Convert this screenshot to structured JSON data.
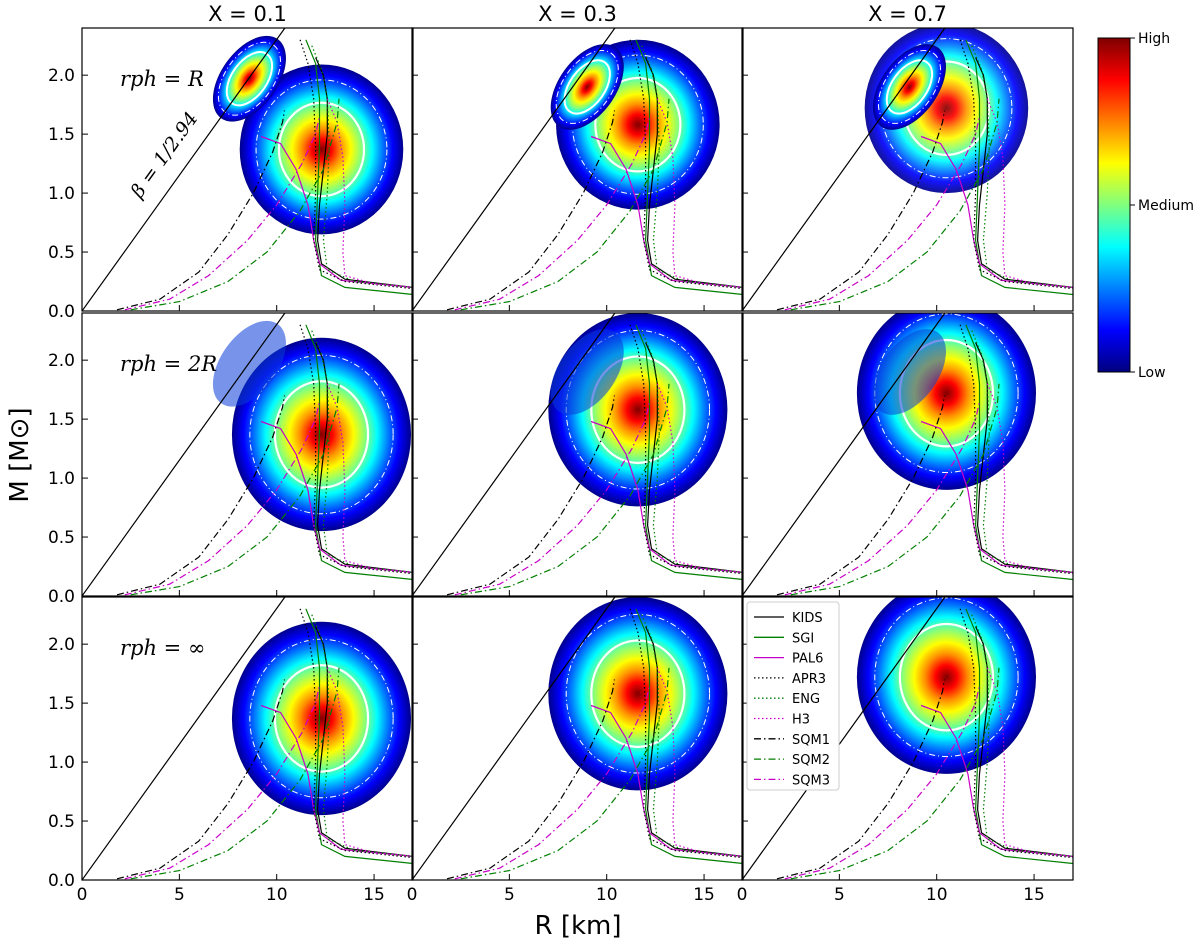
{
  "chart_data": {
    "type": "heatmap",
    "title": "",
    "xlabel": "R [km]",
    "ylabel": "M [M⊙]",
    "xlim": [
      0,
      17
    ],
    "ylim": [
      0,
      2.4
    ],
    "xticks": [
      "0",
      "5",
      "10",
      "15"
    ],
    "yticks": [
      "0.0",
      "0.5",
      "1.0",
      "1.5",
      "2.0"
    ],
    "columns": [
      "X = 0.1",
      "X = 0.3",
      "X = 0.7"
    ],
    "rows": [
      "r_ph = R",
      "r_ph = 2R",
      "r_ph = ∞"
    ],
    "row_labels": [
      "rph = R",
      "rph = 2R",
      "rph = ∞"
    ],
    "annotation": "β = 1/2.94",
    "grid": false,
    "legend_position": "top-left of bottom-right panel",
    "colorbar": {
      "labels": [
        "High",
        "Medium",
        "Low"
      ],
      "colormap": "jet",
      "stops": [
        "#7f0000",
        "#ff0000",
        "#ff7f00",
        "#ffff00",
        "#7fff7f",
        "#00ffff",
        "#007fff",
        "#0000ff",
        "#00007f"
      ]
    },
    "density_peaks": [
      [
        {
          "blob": "ridge",
          "R": 8.6,
          "M": 1.97
        },
        {
          "blob": "main",
          "R": 12.3,
          "M": 1.37
        }
      ],
      [
        {
          "blob": "ridge",
          "R": 9.0,
          "M": 1.9
        },
        {
          "blob": "main",
          "R": 11.6,
          "M": 1.58
        }
      ],
      [
        {
          "blob": "ridge",
          "R": 8.6,
          "M": 1.9
        },
        {
          "blob": "main",
          "R": 10.5,
          "M": 1.72
        }
      ]
    ],
    "series": [
      {
        "name": "KIDS",
        "color": "#000000",
        "style": "solid",
        "points": [
          [
            12.0,
            2.15
          ],
          [
            12.4,
            2.0
          ],
          [
            12.6,
            1.8
          ],
          [
            12.6,
            1.5
          ],
          [
            12.4,
            1.2
          ],
          [
            12.2,
            0.9
          ],
          [
            12.1,
            0.6
          ],
          [
            12.3,
            0.4
          ],
          [
            13.5,
            0.27
          ],
          [
            17,
            0.2
          ]
        ]
      },
      {
        "name": "SGI",
        "color": "#007f00",
        "style": "solid",
        "points": [
          [
            11.5,
            2.3
          ],
          [
            12.0,
            2.1
          ],
          [
            12.2,
            1.8
          ],
          [
            12.2,
            1.4
          ],
          [
            12.1,
            1.0
          ],
          [
            12.0,
            0.6
          ],
          [
            12.3,
            0.3
          ],
          [
            13.5,
            0.2
          ],
          [
            17,
            0.14
          ]
        ]
      },
      {
        "name": "PAL6",
        "color": "#c800c8",
        "style": "solid",
        "points": [
          [
            9.2,
            1.48
          ],
          [
            10.2,
            1.42
          ],
          [
            11.0,
            1.2
          ],
          [
            11.6,
            0.9
          ],
          [
            11.9,
            0.6
          ],
          [
            12.2,
            0.4
          ],
          [
            13.3,
            0.26
          ],
          [
            17,
            0.2
          ]
        ]
      },
      {
        "name": "APR3",
        "color": "#000000",
        "style": "dotted",
        "points": [
          [
            11.2,
            2.3
          ],
          [
            11.6,
            2.1
          ],
          [
            11.9,
            1.8
          ],
          [
            12.0,
            1.4
          ],
          [
            12.0,
            1.0
          ],
          [
            11.9,
            0.6
          ],
          [
            12.2,
            0.35
          ],
          [
            13.5,
            0.25
          ],
          [
            17,
            0.19
          ]
        ]
      },
      {
        "name": "ENG",
        "color": "#007f00",
        "style": "dotted",
        "points": [
          [
            11.8,
            2.25
          ],
          [
            12.3,
            2.05
          ],
          [
            12.6,
            1.8
          ],
          [
            12.7,
            1.4
          ],
          [
            12.6,
            1.0
          ],
          [
            12.4,
            0.6
          ],
          [
            12.6,
            0.35
          ],
          [
            14.0,
            0.25
          ],
          [
            17,
            0.2
          ]
        ]
      },
      {
        "name": "H3",
        "color": "#c800c8",
        "style": "dotted",
        "points": [
          [
            12.6,
            1.8
          ],
          [
            13.1,
            1.6
          ],
          [
            13.4,
            1.3
          ],
          [
            13.5,
            0.9
          ],
          [
            13.4,
            0.5
          ],
          [
            13.5,
            0.3
          ],
          [
            15.0,
            0.23
          ],
          [
            17,
            0.2
          ]
        ]
      },
      {
        "name": "SQM1",
        "color": "#000000",
        "style": "dashdot",
        "points": [
          [
            1.8,
            0.01
          ],
          [
            4.0,
            0.1
          ],
          [
            6.0,
            0.33
          ],
          [
            7.5,
            0.65
          ],
          [
            8.8,
            1.0
          ],
          [
            9.8,
            1.35
          ],
          [
            10.3,
            1.6
          ],
          [
            10.4,
            1.7
          ]
        ]
      },
      {
        "name": "SQM2",
        "color": "#007f00",
        "style": "dashdot",
        "points": [
          [
            2.5,
            0.01
          ],
          [
            5.0,
            0.08
          ],
          [
            7.5,
            0.25
          ],
          [
            9.5,
            0.5
          ],
          [
            11.2,
            0.85
          ],
          [
            12.4,
            1.2
          ],
          [
            13.1,
            1.6
          ],
          [
            13.2,
            1.8
          ]
        ]
      },
      {
        "name": "SQM3",
        "color": "#c800c8",
        "style": "dashdot",
        "points": [
          [
            2.2,
            0.01
          ],
          [
            4.5,
            0.1
          ],
          [
            6.5,
            0.3
          ],
          [
            8.5,
            0.6
          ],
          [
            10.0,
            0.9
          ],
          [
            11.3,
            1.25
          ],
          [
            12.0,
            1.5
          ],
          [
            12.2,
            1.65
          ]
        ]
      }
    ],
    "line_beta": {
      "slope_M_per_km": 0.2303
    }
  }
}
